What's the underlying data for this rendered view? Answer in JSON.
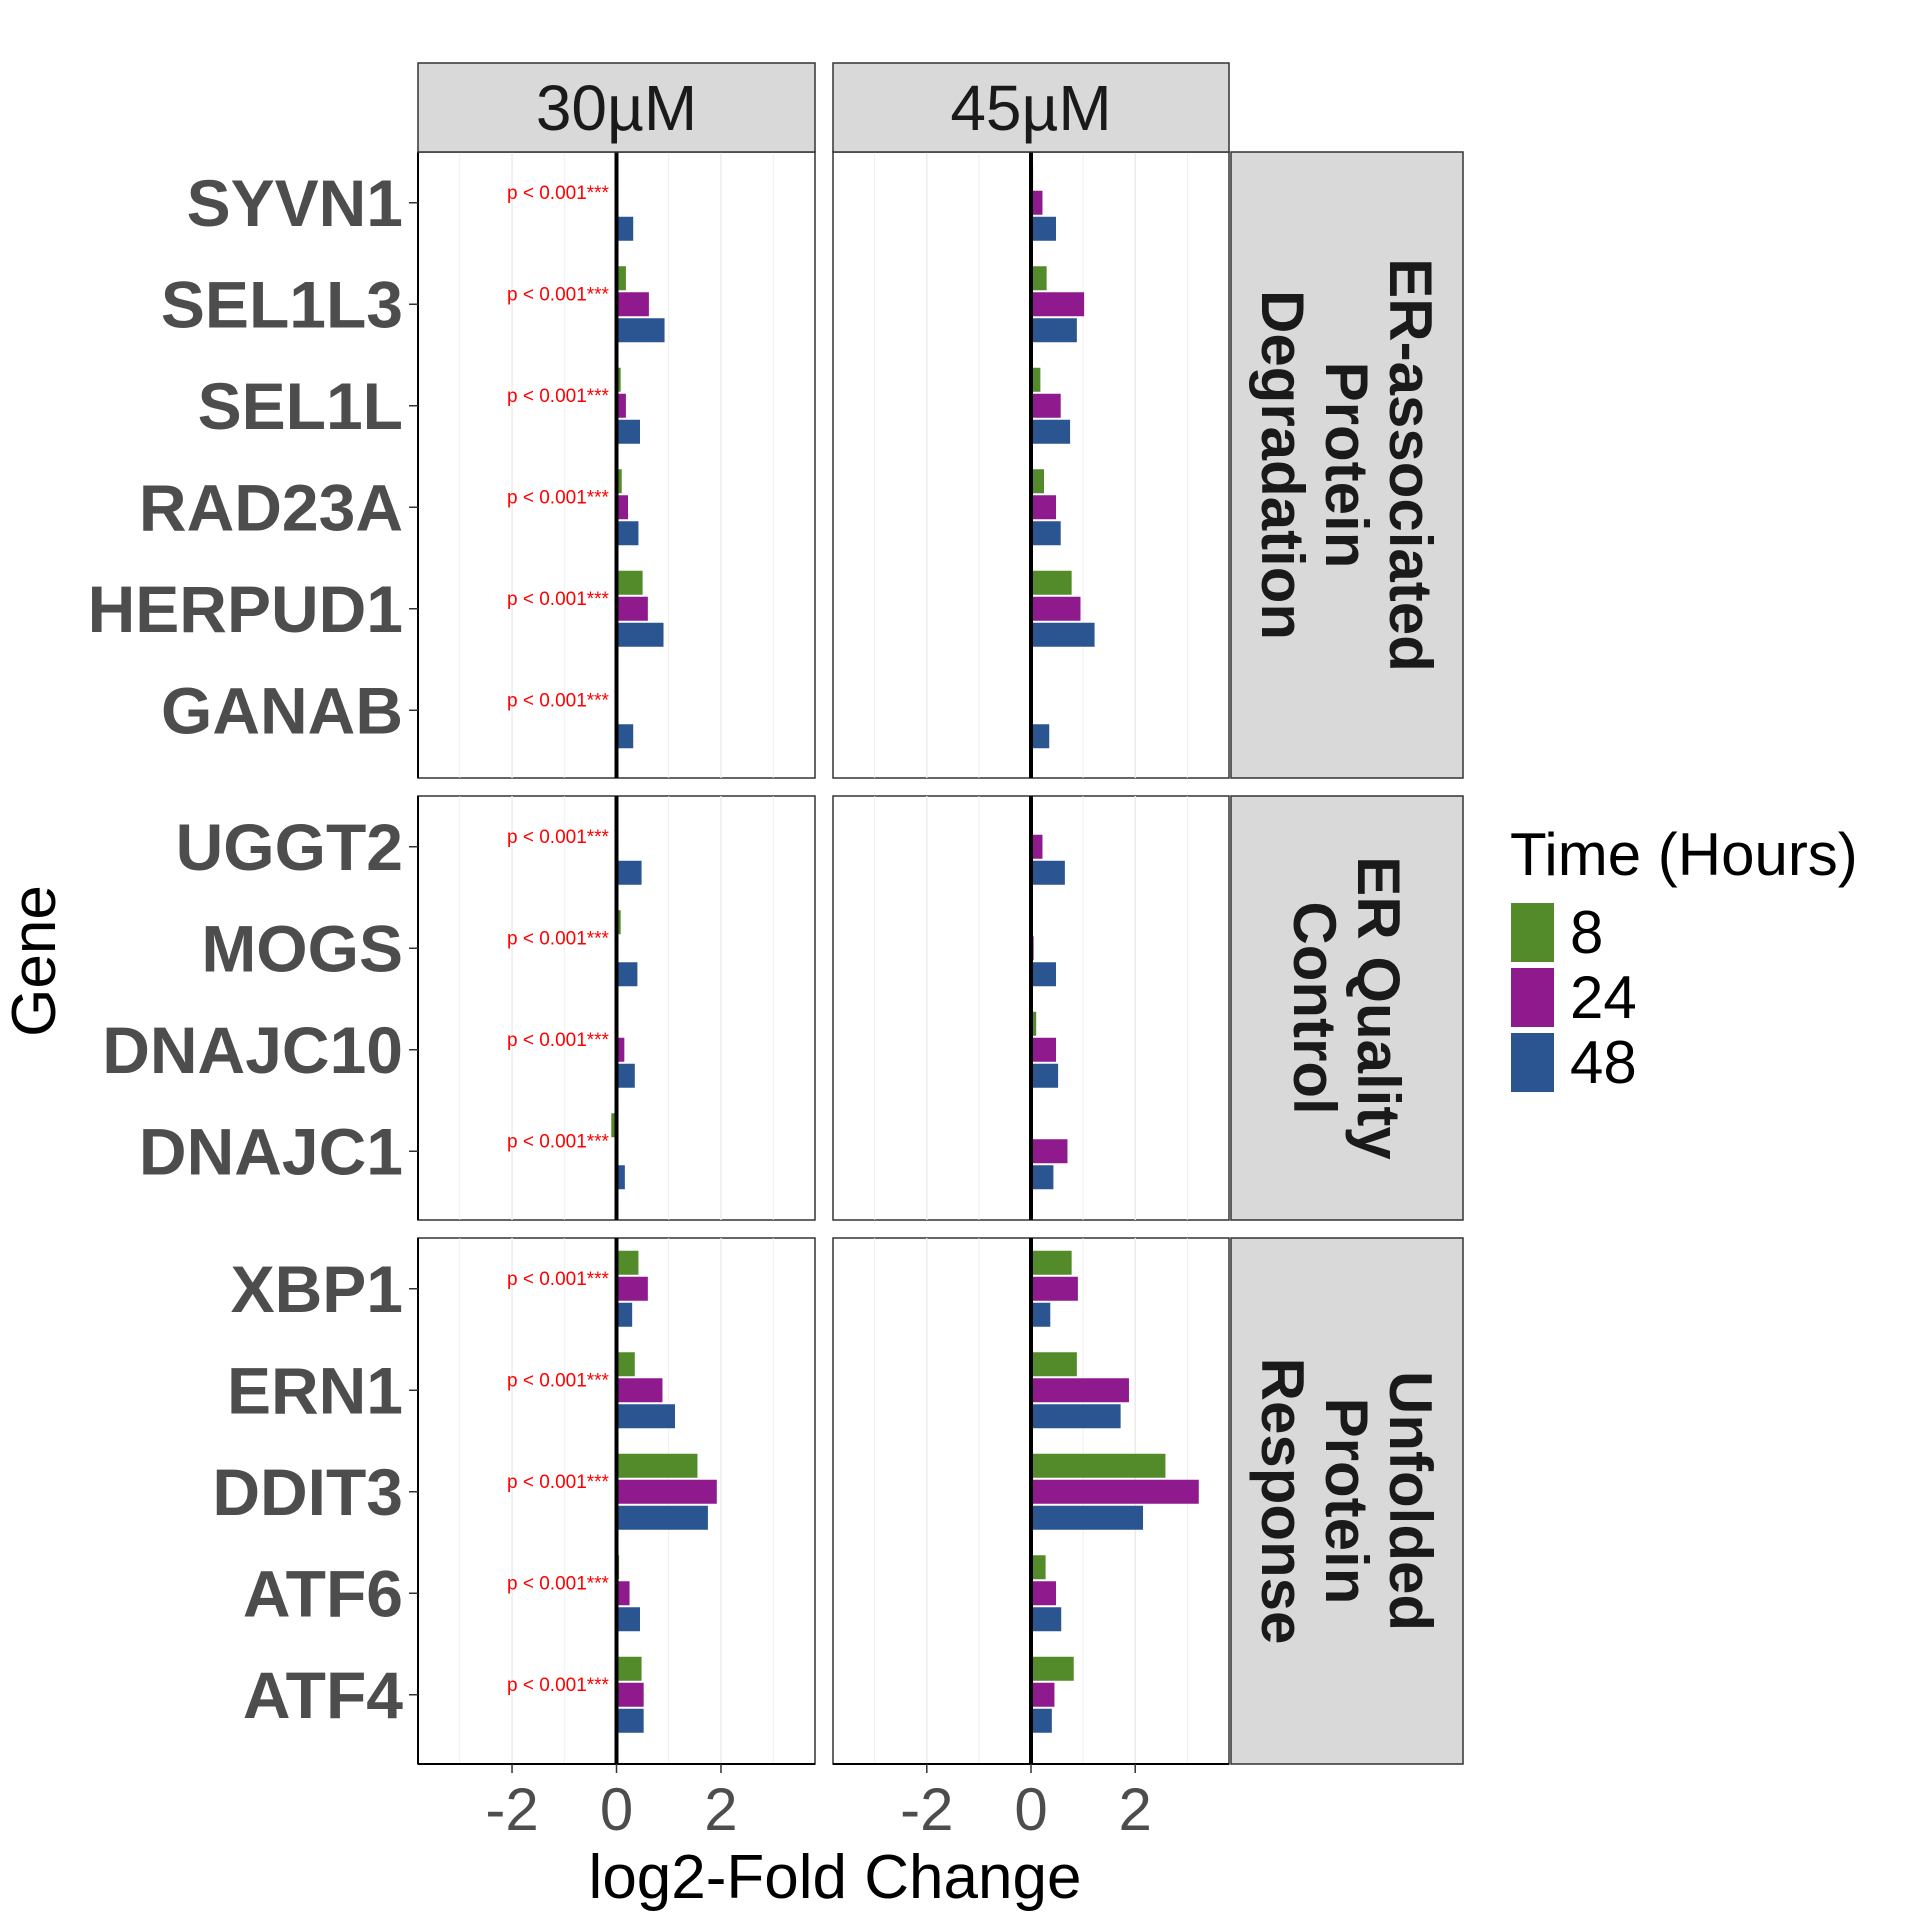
{
  "chart_data": {
    "type": "bar",
    "orientation": "horizontal",
    "xlabel": "log2-Fold Change",
    "ylabel": "Gene",
    "xlim": [
      -3.8,
      3.8
    ],
    "x_ticks": [
      -2,
      0,
      2
    ],
    "x_tick_labels": [
      "-2",
      "0",
      "2"
    ],
    "grid": true,
    "legend": {
      "title": "Time (Hours)",
      "placement": "right",
      "entries": [
        {
          "label": "8",
          "color": "#548B2A"
        },
        {
          "label": "24",
          "color": "#8E1A8E"
        },
        {
          "label": "48",
          "color": "#2A5591"
        }
      ]
    },
    "panel_columns": [
      "30µM",
      "45µM"
    ],
    "panel_rows": [
      {
        "label_lines": [
          "ER-associated",
          "Protein",
          "Degradation"
        ],
        "genes": [
          "SYVN1",
          "SEL1L3",
          "SEL1L",
          "RAD23A",
          "HERPUD1",
          "GANAB"
        ]
      },
      {
        "label_lines": [
          "ER Quality",
          "Control"
        ],
        "genes": [
          "UGGT2",
          "MOGS",
          "DNAJC10",
          "DNAJC1"
        ]
      },
      {
        "label_lines": [
          "Unfolded",
          "Protein",
          "Response"
        ],
        "genes": [
          "XBP1",
          "ERN1",
          "DDIT3",
          "ATF6",
          "ATF4"
        ]
      }
    ],
    "pvalue_label": "p < 0.001***",
    "pvalue_panel": "30µM",
    "series": [
      {
        "name": "8",
        "values": {
          "30µM": {
            "SYVN1": 0.0,
            "SEL1L3": 0.18,
            "SEL1L": 0.08,
            "RAD23A": 0.1,
            "HERPUD1": 0.5,
            "GANAB": 0.0,
            "UGGT2": 0.0,
            "MOGS": 0.08,
            "DNAJC10": 0.0,
            "DNAJC1": -0.1,
            "XBP1": 0.42,
            "ERN1": 0.35,
            "DDIT3": 1.55,
            "ATF6": 0.05,
            "ATF4": 0.48
          },
          "45µM": {
            "SYVN1": 0.04,
            "SEL1L3": 0.3,
            "SEL1L": 0.18,
            "RAD23A": 0.25,
            "HERPUD1": 0.78,
            "GANAB": 0.0,
            "UGGT2": 0.03,
            "MOGS": 0.0,
            "DNAJC10": 0.1,
            "DNAJC1": 0.0,
            "XBP1": 0.78,
            "ERN1": 0.88,
            "DDIT3": 2.58,
            "ATF6": 0.28,
            "ATF4": 0.82
          }
        }
      },
      {
        "name": "24",
        "values": {
          "30µM": {
            "SYVN1": 0.0,
            "SEL1L3": 0.62,
            "SEL1L": 0.18,
            "RAD23A": 0.22,
            "HERPUD1": 0.6,
            "GANAB": 0.0,
            "UGGT2": 0.0,
            "MOGS": 0.0,
            "DNAJC10": 0.15,
            "DNAJC1": 0.0,
            "XBP1": 0.6,
            "ERN1": 0.88,
            "DDIT3": 1.92,
            "ATF6": 0.25,
            "ATF4": 0.52
          },
          "45µM": {
            "SYVN1": 0.22,
            "SEL1L3": 1.02,
            "SEL1L": 0.57,
            "RAD23A": 0.48,
            "HERPUD1": 0.95,
            "GANAB": 0.0,
            "UGGT2": 0.22,
            "MOGS": 0.05,
            "DNAJC10": 0.48,
            "DNAJC1": 0.7,
            "XBP1": 0.9,
            "ERN1": 1.88,
            "DDIT3": 3.22,
            "ATF6": 0.48,
            "ATF4": 0.45
          }
        }
      },
      {
        "name": "48",
        "values": {
          "30µM": {
            "SYVN1": 0.32,
            "SEL1L3": 0.92,
            "SEL1L": 0.45,
            "RAD23A": 0.42,
            "HERPUD1": 0.9,
            "GANAB": 0.32,
            "UGGT2": 0.48,
            "MOGS": 0.4,
            "DNAJC10": 0.35,
            "DNAJC1": 0.16,
            "XBP1": 0.3,
            "ERN1": 1.12,
            "DDIT3": 1.75,
            "ATF6": 0.45,
            "ATF4": 0.52
          },
          "45µM": {
            "SYVN1": 0.48,
            "SEL1L3": 0.88,
            "SEL1L": 0.75,
            "RAD23A": 0.57,
            "HERPUD1": 1.22,
            "GANAB": 0.35,
            "UGGT2": 0.65,
            "MOGS": 0.48,
            "DNAJC10": 0.52,
            "DNAJC1": 0.43,
            "XBP1": 0.37,
            "ERN1": 1.72,
            "DDIT3": 2.15,
            "ATF6": 0.58,
            "ATF4": 0.4
          }
        }
      }
    ]
  }
}
